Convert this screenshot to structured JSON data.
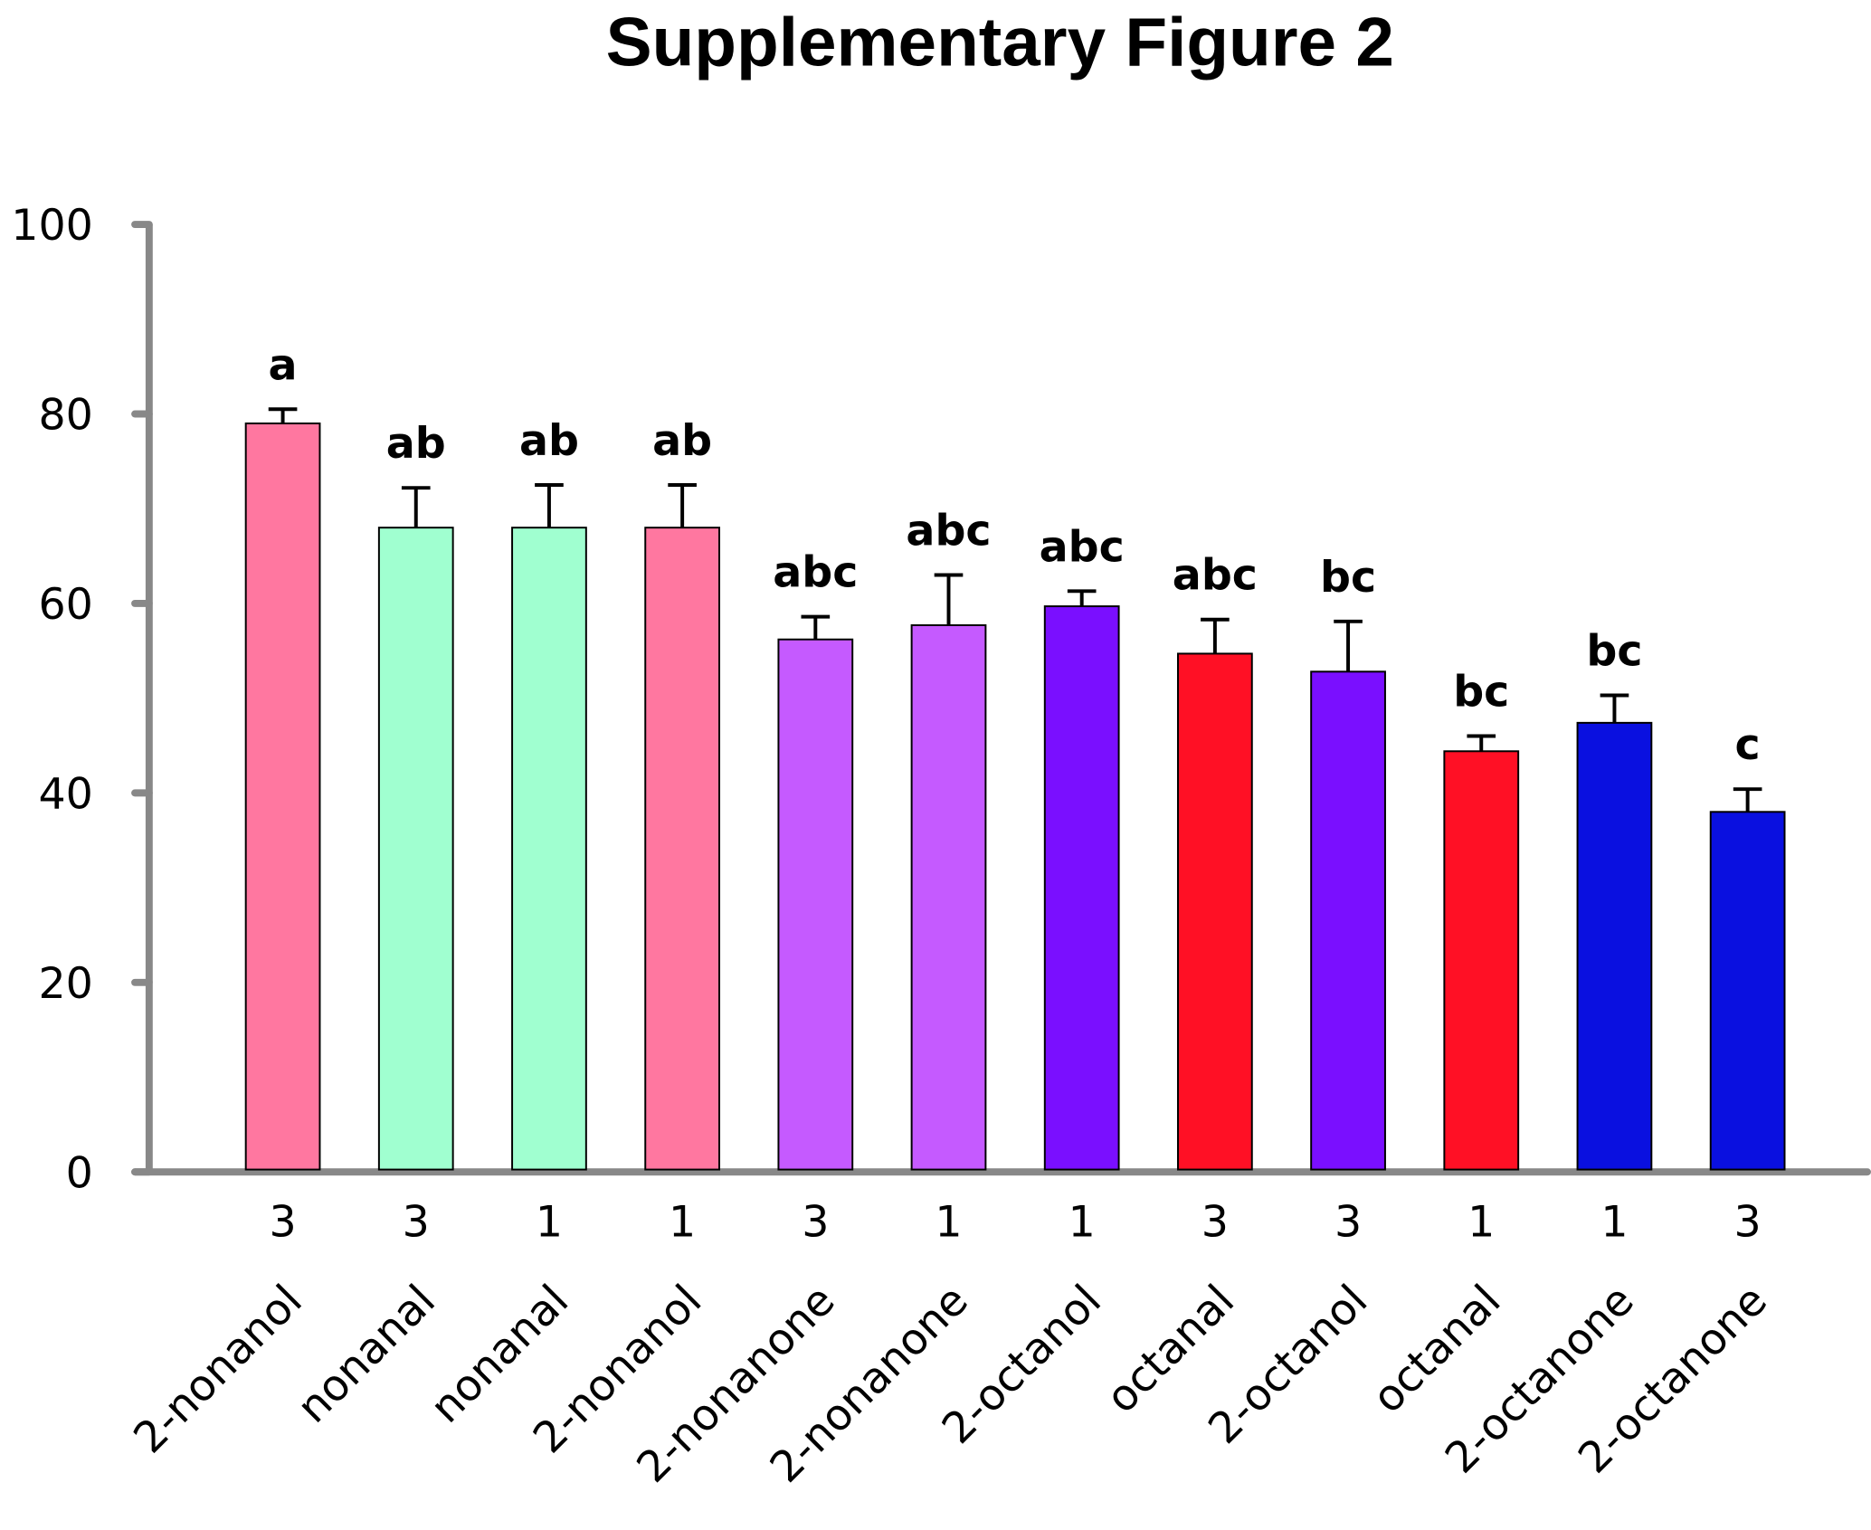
{
  "chart_data": {
    "type": "bar",
    "title": "Supplementary Figure 2",
    "xlabel": "",
    "ylabel": "",
    "ylim": [
      0,
      100
    ],
    "yticks": [
      0,
      20,
      40,
      60,
      80,
      100
    ],
    "grid": false,
    "categories": [
      "2-nonanol",
      "nonanal",
      "nonanal",
      "2-nonanol",
      "2-nonanone",
      "2-nonanone",
      "2-octanol",
      "octanal",
      "2-octanol",
      "octanal",
      "2-octanone",
      "2-octanone"
    ],
    "doses": [
      "3",
      "3",
      "1",
      "1",
      "3",
      "1",
      "1",
      "3",
      "3",
      "1",
      "1",
      "3"
    ],
    "values": [
      79,
      68,
      68,
      68,
      56.2,
      57.7,
      59.7,
      54.7,
      52.8,
      44.4,
      47.4,
      38
    ],
    "error_upper": [
      80.5,
      72.2,
      72.5,
      72.5,
      58.6,
      63,
      61.3,
      58.3,
      58.1,
      46,
      50.3,
      40.4
    ],
    "significance": [
      "a",
      "ab",
      "ab",
      "ab",
      "abc",
      "abc",
      "abc",
      "abc",
      "bc",
      "bc",
      "bc",
      "c"
    ],
    "colors": [
      "#FF77A0",
      "#A0FFD0",
      "#A0FFD0",
      "#FF77A0",
      "#C55AFF",
      "#C55AFF",
      "#7A0FFF",
      "#FF1025",
      "#7A0FFF",
      "#FF1025",
      "#0A10E0",
      "#0A10E0"
    ],
    "axis_color": "#888888"
  }
}
